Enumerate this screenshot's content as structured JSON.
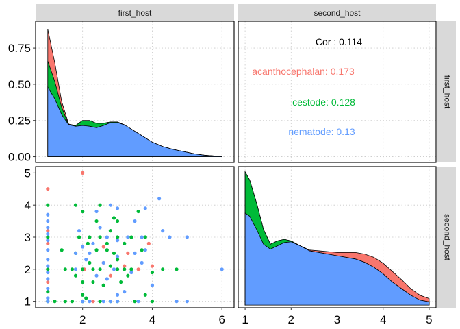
{
  "colors": {
    "acanthocephalan": "#F8766D",
    "cestode": "#00BA38",
    "nematode": "#619CFF",
    "strip_bg": "#D9D9D9",
    "grid": "#C8C8C8",
    "border": "#000000",
    "cor_total": "#000000"
  },
  "strips": {
    "top": [
      "first_host",
      "second_host"
    ],
    "right": [
      "first_host",
      "second_host"
    ]
  },
  "chart_data": [
    {
      "type": "area",
      "panel": "first_host density",
      "stacked": true,
      "xlim": [
        0.65,
        6.35
      ],
      "ylim": [
        -0.04,
        0.935
      ],
      "yticks": [
        0.0,
        0.25,
        0.5,
        0.75
      ],
      "ytick_labels": [
        "0.00",
        "0.25",
        "0.50",
        "0.75"
      ],
      "grid": true,
      "x": [
        1.0,
        1.2,
        1.4,
        1.6,
        1.8,
        2.0,
        2.2,
        2.4,
        2.6,
        2.8,
        3.0,
        3.2,
        3.4,
        3.6,
        3.8,
        4.0,
        4.3,
        4.6,
        4.9,
        5.2,
        5.5,
        5.8,
        6.0
      ],
      "series": [
        {
          "name": "nematode",
          "values": [
            0.48,
            0.4,
            0.29,
            0.22,
            0.21,
            0.215,
            0.21,
            0.2,
            0.215,
            0.235,
            0.235,
            0.22,
            0.19,
            0.16,
            0.13,
            0.1,
            0.07,
            0.05,
            0.035,
            0.02,
            0.01,
            0.005,
            0.005
          ]
        },
        {
          "name": "cestode",
          "values": [
            0.18,
            0.12,
            0.05,
            0.0,
            0.005,
            0.035,
            0.04,
            0.03,
            0.015,
            0.005,
            0.005,
            0.0,
            0.0,
            0.0,
            0.0,
            0.0,
            0.0,
            0.0,
            0.0,
            0.0,
            0.0,
            0.0,
            0.0
          ]
        },
        {
          "name": "acanthocephalan",
          "values": [
            0.22,
            0.13,
            0.04,
            0.005,
            0.0,
            0.0,
            0.0,
            0.0,
            0.0,
            0.0,
            0.0,
            0.0,
            0.0,
            0.0,
            0.0,
            0.0,
            0.0,
            0.0,
            0.0,
            0.0,
            0.0,
            0.0,
            0.0
          ]
        }
      ]
    },
    {
      "type": "table",
      "panel": "correlation text",
      "entries": [
        {
          "key": "total",
          "label": "Cor : 0.114"
        },
        {
          "key": "acanthocephalan",
          "label": "acanthocephalan: 0.173"
        },
        {
          "key": "cestode",
          "label": "cestode: 0.128"
        },
        {
          "key": "nematode",
          "label": "nematode: 0.13"
        }
      ]
    },
    {
      "type": "scatter",
      "panel": "first_host vs second_host",
      "xlim": [
        0.65,
        6.35
      ],
      "ylim": [
        0.8,
        5.2
      ],
      "xticks": [
        2,
        4,
        6
      ],
      "xtick_labels": [
        "2",
        "4",
        "6"
      ],
      "yticks": [
        1,
        2,
        3,
        4,
        5
      ],
      "ytick_labels": [
        "1",
        "2",
        "3",
        "4",
        "5"
      ],
      "grid": true,
      "series": [
        {
          "name": "acanthocephalan",
          "points": [
            [
              1.0,
              4.5
            ],
            [
              1.0,
              3.2
            ],
            [
              1.0,
              2.8
            ],
            [
              1.0,
              2.0
            ],
            [
              1.0,
              1.6
            ],
            [
              2.0,
              5.0
            ],
            [
              2.05,
              2.0
            ],
            [
              2.3,
              1.0
            ],
            [
              2.6,
              2.2
            ],
            [
              2.6,
              2.7
            ],
            [
              2.8,
              1.8
            ],
            [
              3.2,
              2.1
            ],
            [
              3.3,
              2.5
            ],
            [
              3.6,
              2.0
            ],
            [
              3.9,
              2.8
            ],
            [
              4.0,
              2.1
            ]
          ]
        },
        {
          "name": "cestode",
          "points": [
            [
              1.0,
              4.0
            ],
            [
              1.0,
              3.0
            ],
            [
              1.0,
              2.0
            ],
            [
              1.0,
              1.0
            ],
            [
              1.0,
              1.3
            ],
            [
              1.5,
              2.0
            ],
            [
              1.5,
              1.0
            ],
            [
              1.7,
              1.0
            ],
            [
              1.7,
              2.0
            ],
            [
              1.8,
              4.0
            ],
            [
              1.8,
              2.5
            ],
            [
              1.8,
              1.8
            ],
            [
              1.9,
              3.0
            ],
            [
              2.0,
              3.8
            ],
            [
              2.0,
              2.0
            ],
            [
              2.0,
              1.6
            ],
            [
              2.0,
              1.2
            ],
            [
              2.0,
              1.0
            ],
            [
              2.15,
              2.8
            ],
            [
              2.2,
              3.0
            ],
            [
              2.2,
              2.2
            ],
            [
              2.3,
              2.0
            ],
            [
              2.3,
              1.6
            ],
            [
              2.4,
              2.6
            ],
            [
              2.4,
              3.5
            ],
            [
              2.5,
              4.0
            ],
            [
              2.5,
              3.0
            ],
            [
              2.5,
              2.0
            ],
            [
              2.5,
              1.0
            ],
            [
              2.6,
              1.5
            ],
            [
              2.7,
              2.6
            ],
            [
              2.7,
              2.8
            ],
            [
              2.8,
              3.2
            ],
            [
              2.8,
              2.1
            ],
            [
              2.8,
              1.0
            ],
            [
              2.9,
              3.6
            ],
            [
              2.9,
              2.5
            ],
            [
              3.0,
              3.5
            ],
            [
              3.0,
              3.0
            ],
            [
              3.0,
              2.3
            ],
            [
              3.0,
              2.0
            ],
            [
              3.0,
              1.0
            ],
            [
              3.1,
              1.6
            ],
            [
              3.2,
              2.8
            ],
            [
              3.2,
              2.0
            ],
            [
              3.3,
              1.8
            ],
            [
              3.4,
              3.0
            ],
            [
              3.4,
              2.0
            ],
            [
              3.5,
              1.0
            ],
            [
              3.6,
              3.8
            ],
            [
              3.7,
              2.6
            ],
            [
              3.8,
              3.0
            ],
            [
              3.8,
              1.2
            ],
            [
              4.0,
              1.9
            ],
            [
              4.0,
              1.0
            ],
            [
              4.3,
              2.0
            ],
            [
              4.7,
              2.0
            ],
            [
              1.2,
              1.0
            ],
            [
              1.4,
              2.6
            ],
            [
              2.1,
              1.1
            ]
          ]
        },
        {
          "name": "nematode",
          "points": [
            [
              1.0,
              3.7
            ],
            [
              1.0,
              3.5
            ],
            [
              1.0,
              3.3
            ],
            [
              1.0,
              3.1
            ],
            [
              1.0,
              2.9
            ],
            [
              1.0,
              2.6
            ],
            [
              1.0,
              2.3
            ],
            [
              1.0,
              2.1
            ],
            [
              1.0,
              1.9
            ],
            [
              1.0,
              1.7
            ],
            [
              1.0,
              1.4
            ],
            [
              1.0,
              1.1
            ],
            [
              1.0,
              1.0
            ],
            [
              1.8,
              2.5
            ],
            [
              1.8,
              2.0
            ],
            [
              1.9,
              3.2
            ],
            [
              2.0,
              2.7
            ],
            [
              2.0,
              1.0
            ],
            [
              2.2,
              2.5
            ],
            [
              2.2,
              1.0
            ],
            [
              2.4,
              3.8
            ],
            [
              2.4,
              1.8
            ],
            [
              2.5,
              3.3
            ],
            [
              2.6,
              2.2
            ],
            [
              2.6,
              1.0
            ],
            [
              2.7,
              3.0
            ],
            [
              2.7,
              1.7
            ],
            [
              2.8,
              4.0
            ],
            [
              2.8,
              1.0
            ],
            [
              2.9,
              2.0
            ],
            [
              3.0,
              3.9
            ],
            [
              3.0,
              2.9
            ],
            [
              3.0,
              2.4
            ],
            [
              3.0,
              1.2
            ],
            [
              3.0,
              1.0
            ],
            [
              3.2,
              1.3
            ],
            [
              3.3,
              3.0
            ],
            [
              3.5,
              3.5
            ],
            [
              3.5,
              2.5
            ],
            [
              3.6,
              1.0
            ],
            [
              3.7,
              2.2
            ],
            [
              3.7,
              3.0
            ],
            [
              3.8,
              2.6
            ],
            [
              3.8,
              3.9
            ],
            [
              4.0,
              1.5
            ],
            [
              4.2,
              4.2
            ],
            [
              4.3,
              3.2
            ],
            [
              4.5,
              3.0
            ],
            [
              4.7,
              1.0
            ],
            [
              5.0,
              1.0
            ],
            [
              5.0,
              3.0
            ],
            [
              6.0,
              2.0
            ],
            [
              2.1,
              2.3
            ],
            [
              2.3,
              2.8
            ],
            [
              3.4,
              1.9
            ]
          ]
        }
      ]
    },
    {
      "type": "area",
      "panel": "second_host density",
      "stacked": true,
      "xlim": [
        0.85,
        5.15
      ],
      "xticks": [
        1,
        2,
        3,
        4,
        5
      ],
      "xtick_labels": [
        "1",
        "2",
        "3",
        "4",
        "5"
      ],
      "grid": true,
      "x": [
        1.0,
        1.1,
        1.25,
        1.4,
        1.55,
        1.7,
        1.85,
        2.0,
        2.2,
        2.4,
        2.6,
        2.8,
        3.0,
        3.2,
        3.4,
        3.6,
        3.8,
        4.0,
        4.2,
        4.4,
        4.6,
        4.8,
        5.0
      ],
      "series": [
        {
          "name": "nematode",
          "values": [
            0.56,
            0.54,
            0.46,
            0.37,
            0.34,
            0.36,
            0.38,
            0.385,
            0.36,
            0.33,
            0.32,
            0.31,
            0.3,
            0.29,
            0.28,
            0.26,
            0.23,
            0.19,
            0.14,
            0.1,
            0.06,
            0.03,
            0.02
          ]
        },
        {
          "name": "cestode",
          "values": [
            0.25,
            0.22,
            0.16,
            0.09,
            0.03,
            0.03,
            0.02,
            0.005,
            0.0,
            0.0,
            0.0,
            0.0,
            0.0,
            0.0,
            0.0,
            0.0,
            0.0,
            0.0,
            0.0,
            0.0,
            0.0,
            0.0,
            0.0
          ]
        },
        {
          "name": "acanthocephalan",
          "values": [
            0.0,
            0.0,
            0.0,
            0.0,
            0.0,
            0.0,
            0.0,
            0.0,
            0.0,
            0.005,
            0.01,
            0.015,
            0.02,
            0.03,
            0.04,
            0.05,
            0.06,
            0.065,
            0.065,
            0.055,
            0.04,
            0.03,
            0.02
          ]
        }
      ]
    }
  ]
}
